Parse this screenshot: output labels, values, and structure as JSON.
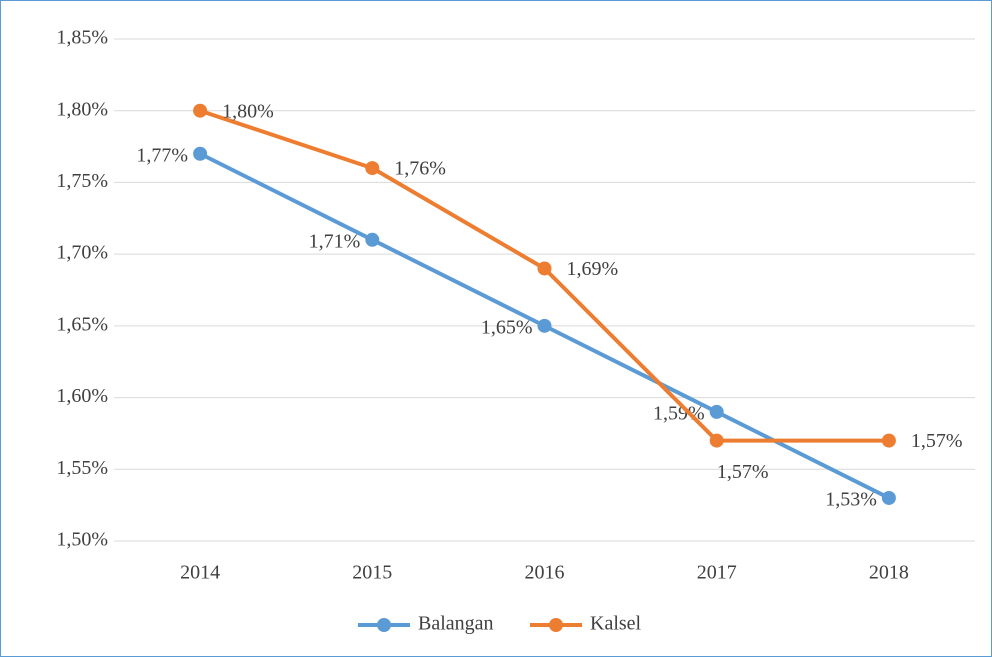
{
  "chart_data": {
    "type": "line",
    "categories": [
      "2014",
      "2015",
      "2016",
      "2017",
      "2018"
    ],
    "series": [
      {
        "name": "Balangan",
        "color": "#5b9bd5",
        "values": [
          1.77,
          1.71,
          1.65,
          1.59,
          1.53
        ],
        "value_labels": [
          "1,77%",
          "1,71%",
          "1,65%",
          "1,59%",
          "1,53%"
        ]
      },
      {
        "name": "Kalsel",
        "color": "#ed7d31",
        "values": [
          1.8,
          1.76,
          1.69,
          1.57,
          1.57
        ],
        "value_labels": [
          "1,80%",
          "1,76%",
          "1,69%",
          "1,57%",
          "1,57%"
        ]
      }
    ],
    "ylim": [
      1.5,
      1.85
    ],
    "yticks": [
      {
        "value": 1.5,
        "label": "1,50%"
      },
      {
        "value": 1.55,
        "label": "1,55%"
      },
      {
        "value": 1.6,
        "label": "1,60%"
      },
      {
        "value": 1.65,
        "label": "1,65%"
      },
      {
        "value": 1.7,
        "label": "1,70%"
      },
      {
        "value": 1.75,
        "label": "1,75%"
      },
      {
        "value": 1.8,
        "label": "1,80%"
      },
      {
        "value": 1.85,
        "label": "1,85%"
      }
    ],
    "grid": true,
    "legend": "bottom"
  }
}
